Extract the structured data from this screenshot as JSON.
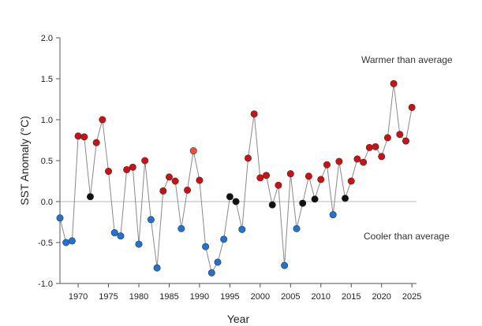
{
  "chart_data": {
    "type": "scatter",
    "xlabel": "Year",
    "ylabel": "SST Anomaly (°C)",
    "xlim": [
      1967,
      2025.5
    ],
    "ylim": [
      -1.0,
      2.0
    ],
    "x_ticks": [
      1970,
      1975,
      1980,
      1985,
      1990,
      1995,
      2000,
      2005,
      2010,
      2015,
      2020,
      2025
    ],
    "y_ticks": [
      -1.0,
      -0.5,
      0.0,
      0.5,
      1.0,
      1.5,
      2.0
    ],
    "y_tick_labels": [
      "-1.0",
      "-0.5",
      "0.0",
      "0.5",
      "1.0",
      "1.5",
      "2.0"
    ],
    "baseline": 0.0,
    "line_color": "#8a8a8a",
    "categories": {
      "warm": "#d01010",
      "cool": "#1e73d6",
      "neutral": "#111111",
      "highlight": "#e8504a"
    },
    "annotations": {
      "warmer": "Warmer than average",
      "cooler": "Cooler than average"
    },
    "points": [
      {
        "x": 1967,
        "y": -0.2,
        "c": "cool"
      },
      {
        "x": 1968,
        "y": -0.5,
        "c": "cool"
      },
      {
        "x": 1969,
        "y": -0.48,
        "c": "cool"
      },
      {
        "x": 1970,
        "y": 0.8,
        "c": "warm"
      },
      {
        "x": 1971,
        "y": 0.79,
        "c": "warm"
      },
      {
        "x": 1972,
        "y": 0.06,
        "c": "neutral"
      },
      {
        "x": 1973,
        "y": 0.72,
        "c": "warm"
      },
      {
        "x": 1974,
        "y": 1.0,
        "c": "warm"
      },
      {
        "x": 1975,
        "y": 0.37,
        "c": "warm"
      },
      {
        "x": 1976,
        "y": -0.38,
        "c": "cool"
      },
      {
        "x": 1977,
        "y": -0.42,
        "c": "cool"
      },
      {
        "x": 1978,
        "y": 0.39,
        "c": "warm"
      },
      {
        "x": 1979,
        "y": 0.42,
        "c": "warm"
      },
      {
        "x": 1980,
        "y": -0.52,
        "c": "cool"
      },
      {
        "x": 1981,
        "y": 0.5,
        "c": "warm"
      },
      {
        "x": 1982,
        "y": -0.22,
        "c": "cool"
      },
      {
        "x": 1983,
        "y": -0.81,
        "c": "cool"
      },
      {
        "x": 1984,
        "y": 0.13,
        "c": "warm"
      },
      {
        "x": 1985,
        "y": 0.3,
        "c": "warm"
      },
      {
        "x": 1986,
        "y": 0.25,
        "c": "warm"
      },
      {
        "x": 1987,
        "y": -0.33,
        "c": "cool"
      },
      {
        "x": 1988,
        "y": 0.14,
        "c": "warm"
      },
      {
        "x": 1989,
        "y": 0.62,
        "c": "highlight"
      },
      {
        "x": 1990,
        "y": 0.26,
        "c": "warm"
      },
      {
        "x": 1991,
        "y": -0.55,
        "c": "cool"
      },
      {
        "x": 1992,
        "y": -0.87,
        "c": "cool"
      },
      {
        "x": 1993,
        "y": -0.74,
        "c": "cool"
      },
      {
        "x": 1994,
        "y": -0.46,
        "c": "cool"
      },
      {
        "x": 1995,
        "y": 0.06,
        "c": "neutral"
      },
      {
        "x": 1996,
        "y": 0.0,
        "c": "neutral"
      },
      {
        "x": 1997,
        "y": -0.34,
        "c": "cool"
      },
      {
        "x": 1998,
        "y": 0.53,
        "c": "warm"
      },
      {
        "x": 1999,
        "y": 1.07,
        "c": "warm"
      },
      {
        "x": 2000,
        "y": 0.29,
        "c": "warm"
      },
      {
        "x": 2001,
        "y": 0.32,
        "c": "warm"
      },
      {
        "x": 2002,
        "y": -0.04,
        "c": "neutral"
      },
      {
        "x": 2003,
        "y": 0.2,
        "c": "warm"
      },
      {
        "x": 2004,
        "y": -0.78,
        "c": "cool"
      },
      {
        "x": 2005,
        "y": 0.34,
        "c": "warm"
      },
      {
        "x": 2006,
        "y": -0.33,
        "c": "cool"
      },
      {
        "x": 2007,
        "y": -0.02,
        "c": "neutral"
      },
      {
        "x": 2008,
        "y": 0.31,
        "c": "warm"
      },
      {
        "x": 2009,
        "y": 0.03,
        "c": "neutral"
      },
      {
        "x": 2010,
        "y": 0.27,
        "c": "warm"
      },
      {
        "x": 2011,
        "y": 0.45,
        "c": "warm"
      },
      {
        "x": 2012,
        "y": -0.16,
        "c": "cool"
      },
      {
        "x": 2013,
        "y": 0.49,
        "c": "warm"
      },
      {
        "x": 2014,
        "y": 0.04,
        "c": "neutral"
      },
      {
        "x": 2015,
        "y": 0.25,
        "c": "warm"
      },
      {
        "x": 2016,
        "y": 0.52,
        "c": "warm"
      },
      {
        "x": 2017,
        "y": 0.48,
        "c": "warm"
      },
      {
        "x": 2018,
        "y": 0.66,
        "c": "warm"
      },
      {
        "x": 2019,
        "y": 0.67,
        "c": "warm"
      },
      {
        "x": 2020,
        "y": 0.55,
        "c": "warm"
      },
      {
        "x": 2021,
        "y": 0.78,
        "c": "warm"
      },
      {
        "x": 2022,
        "y": 1.44,
        "c": "warm"
      },
      {
        "x": 2023,
        "y": 0.82,
        "c": "warm"
      },
      {
        "x": 2024,
        "y": 0.74,
        "c": "warm"
      },
      {
        "x": 2025,
        "y": 1.15,
        "c": "warm"
      }
    ]
  }
}
